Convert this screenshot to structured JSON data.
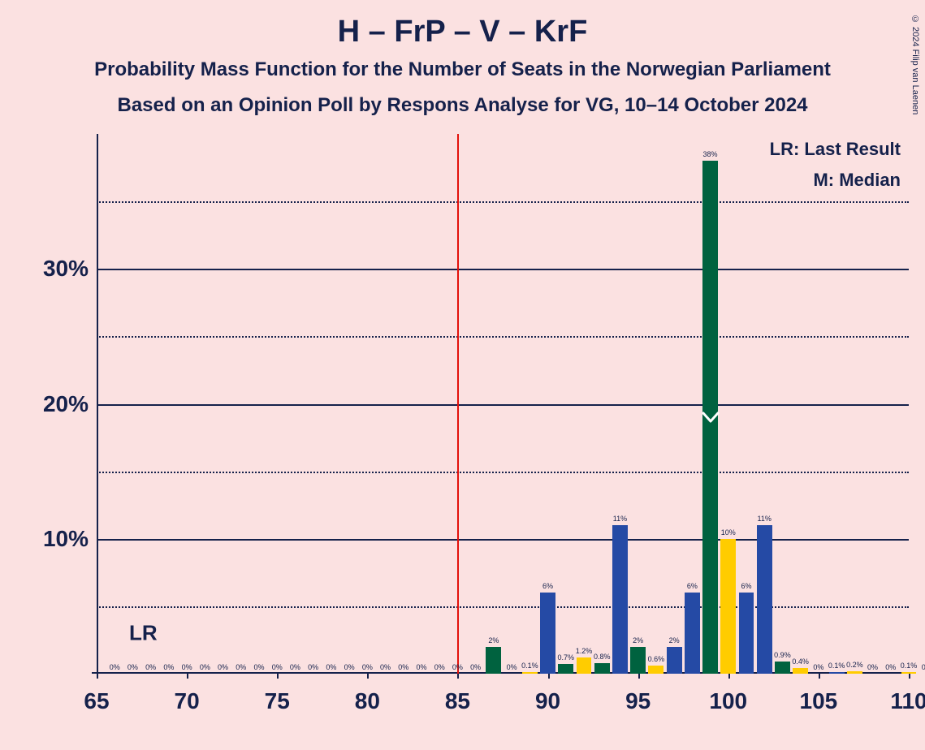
{
  "title": "H – FrP – V – KrF",
  "subtitle1": "Probability Mass Function for the Number of Seats in the Norwegian Parliament",
  "subtitle2": "Based on an Opinion Poll by Respons Analyse for VG, 10–14 October 2024",
  "copyright": "© 2024 Filip van Laenen",
  "legend_lr": "LR: Last Result",
  "legend_m": "M: Median",
  "lr_text": "LR",
  "chart": {
    "xlim": [
      65,
      110
    ],
    "ylim": [
      0,
      40
    ],
    "ytick_major": [
      10,
      20,
      30
    ],
    "ytick_minor": [
      5,
      15,
      25,
      35
    ],
    "ytick_labels": {
      "10": "10%",
      "20": "20%",
      "30": "30%"
    },
    "xticks": [
      65,
      70,
      75,
      80,
      85,
      90,
      95,
      100,
      105,
      110
    ],
    "lr_x": 85,
    "median_x": 99,
    "median_y": 19,
    "bar_width": 0.85,
    "colors": {
      "green": "#00623f",
      "blue": "#254aa5",
      "yellow": "#ffcc00",
      "text": "#15214b",
      "bg": "#fbe1e1",
      "red": "#e3120b"
    },
    "bars": [
      {
        "x": 66,
        "v": 0,
        "label": "0%",
        "color": "#00623f"
      },
      {
        "x": 67,
        "v": 0,
        "label": "0%",
        "color": "#254aa5"
      },
      {
        "x": 68,
        "v": 0,
        "label": "0%",
        "color": "#ffcc00"
      },
      {
        "x": 69,
        "v": 0,
        "label": "0%",
        "color": "#00623f"
      },
      {
        "x": 70,
        "v": 0,
        "label": "0%",
        "color": "#254aa5"
      },
      {
        "x": 71,
        "v": 0,
        "label": "0%",
        "color": "#ffcc00"
      },
      {
        "x": 72,
        "v": 0,
        "label": "0%",
        "color": "#00623f"
      },
      {
        "x": 73,
        "v": 0,
        "label": "0%",
        "color": "#254aa5"
      },
      {
        "x": 74,
        "v": 0,
        "label": "0%",
        "color": "#ffcc00"
      },
      {
        "x": 75,
        "v": 0,
        "label": "0%",
        "color": "#00623f"
      },
      {
        "x": 76,
        "v": 0,
        "label": "0%",
        "color": "#254aa5"
      },
      {
        "x": 77,
        "v": 0,
        "label": "0%",
        "color": "#ffcc00"
      },
      {
        "x": 78,
        "v": 0,
        "label": "0%",
        "color": "#00623f"
      },
      {
        "x": 79,
        "v": 0,
        "label": "0%",
        "color": "#254aa5"
      },
      {
        "x": 80,
        "v": 0,
        "label": "0%",
        "color": "#ffcc00"
      },
      {
        "x": 81,
        "v": 0,
        "label": "0%",
        "color": "#00623f"
      },
      {
        "x": 82,
        "v": 0,
        "label": "0%",
        "color": "#254aa5"
      },
      {
        "x": 83,
        "v": 0,
        "label": "0%",
        "color": "#ffcc00"
      },
      {
        "x": 84,
        "v": 0,
        "label": "0%",
        "color": "#00623f"
      },
      {
        "x": 85,
        "v": 0,
        "label": "0%",
        "color": "#254aa5"
      },
      {
        "x": 86,
        "v": 0,
        "label": "0%",
        "color": "#ffcc00"
      },
      {
        "x": 87,
        "v": 2,
        "label": "2%",
        "color": "#00623f"
      },
      {
        "x": 88,
        "v": 0,
        "label": "0%",
        "color": "#254aa5"
      },
      {
        "x": 89,
        "v": 0.1,
        "label": "0.1%",
        "color": "#ffcc00"
      },
      {
        "x": 90,
        "v": 6,
        "label": "6%",
        "color": "#254aa5"
      },
      {
        "x": 91,
        "v": 0.7,
        "label": "0.7%",
        "color": "#00623f"
      },
      {
        "x": 92,
        "v": 1.2,
        "label": "1.2%",
        "color": "#ffcc00"
      },
      {
        "x": 93,
        "v": 0.8,
        "label": "0.8%",
        "color": "#00623f"
      },
      {
        "x": 94,
        "v": 11,
        "label": "11%",
        "color": "#254aa5"
      },
      {
        "x": 95,
        "v": 2,
        "label": "2%",
        "color": "#00623f"
      },
      {
        "x": 96,
        "v": 0.6,
        "label": "0.6%",
        "color": "#ffcc00"
      },
      {
        "x": 97,
        "v": 2,
        "label": "2%",
        "color": "#254aa5"
      },
      {
        "x": 98,
        "v": 6,
        "label": "6%",
        "color": "#254aa5"
      },
      {
        "x": 99,
        "v": 38,
        "label": "38%",
        "color": "#00623f"
      },
      {
        "x": 100,
        "v": 10,
        "label": "10%",
        "color": "#ffcc00"
      },
      {
        "x": 101,
        "v": 6,
        "label": "6%",
        "color": "#254aa5"
      },
      {
        "x": 102,
        "v": 11,
        "label": "11%",
        "color": "#254aa5"
      },
      {
        "x": 103,
        "v": 0.9,
        "label": "0.9%",
        "color": "#00623f"
      },
      {
        "x": 104,
        "v": 0.4,
        "label": "0.4%",
        "color": "#ffcc00"
      },
      {
        "x": 105,
        "v": 0,
        "label": "0%",
        "color": "#00623f"
      },
      {
        "x": 106,
        "v": 0.1,
        "label": "0.1%",
        "color": "#254aa5"
      },
      {
        "x": 107,
        "v": 0.2,
        "label": "0.2%",
        "color": "#ffcc00"
      },
      {
        "x": 108,
        "v": 0,
        "label": "0%",
        "color": "#00623f"
      },
      {
        "x": 109,
        "v": 0,
        "label": "0%",
        "color": "#254aa5"
      },
      {
        "x": 110,
        "v": 0.1,
        "label": "0.1%",
        "color": "#ffcc00"
      },
      {
        "x": 111,
        "v": 0,
        "label": "0%",
        "color": "#00623f"
      }
    ]
  }
}
